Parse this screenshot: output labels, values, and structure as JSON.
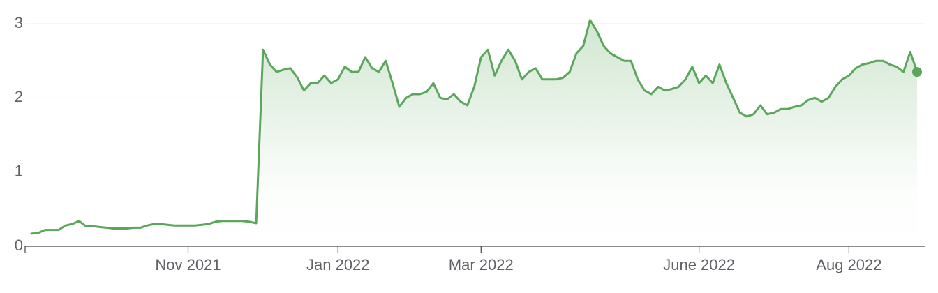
{
  "chart_data": {
    "type": "line",
    "categories": [
      null,
      null,
      null,
      null,
      null,
      null,
      null,
      null,
      null,
      null,
      null,
      null,
      null,
      null,
      null,
      null,
      null,
      null,
      null,
      null,
      null,
      null,
      null,
      "Nov 2021",
      null,
      null,
      null,
      null,
      null,
      null,
      null,
      null,
      null,
      null,
      null,
      null,
      null,
      null,
      null,
      null,
      null,
      null,
      null,
      null,
      null,
      "Jan 2022",
      null,
      null,
      null,
      null,
      null,
      null,
      null,
      null,
      null,
      null,
      null,
      null,
      null,
      null,
      null,
      null,
      null,
      null,
      null,
      null,
      "Mar 2022",
      null,
      null,
      null,
      null,
      null,
      null,
      null,
      null,
      null,
      null,
      null,
      null,
      null,
      null,
      null,
      null,
      null,
      null,
      null,
      null,
      null,
      null,
      null,
      null,
      null,
      null,
      null,
      null,
      null,
      null,
      null,
      "June 2022",
      null,
      null,
      null,
      null,
      null,
      null,
      null,
      null,
      null,
      null,
      null,
      null,
      null,
      null,
      null,
      null,
      null,
      null,
      null,
      null,
      null,
      "Aug 2022",
      null,
      null,
      null,
      null,
      null,
      null,
      null,
      null,
      null,
      null
    ],
    "values": [
      0.17,
      0.18,
      0.22,
      0.22,
      0.22,
      0.28,
      0.3,
      0.34,
      0.27,
      0.27,
      0.26,
      0.25,
      0.24,
      0.24,
      0.24,
      0.25,
      0.25,
      0.28,
      0.3,
      0.3,
      0.29,
      0.28,
      0.28,
      0.28,
      0.28,
      0.29,
      0.3,
      0.33,
      0.34,
      0.34,
      0.34,
      0.34,
      0.33,
      0.31,
      2.65,
      2.45,
      2.35,
      2.38,
      2.4,
      2.28,
      2.1,
      2.2,
      2.2,
      2.3,
      2.2,
      2.25,
      2.42,
      2.35,
      2.35,
      2.55,
      2.4,
      2.35,
      2.5,
      2.2,
      1.88,
      2.0,
      2.05,
      2.05,
      2.08,
      2.2,
      2.0,
      1.98,
      2.05,
      1.95,
      1.9,
      2.15,
      2.55,
      2.65,
      2.3,
      2.5,
      2.65,
      2.5,
      2.25,
      2.35,
      2.4,
      2.25,
      2.25,
      2.25,
      2.27,
      2.35,
      2.6,
      2.7,
      3.05,
      2.9,
      2.7,
      2.6,
      2.55,
      2.5,
      2.5,
      2.25,
      2.1,
      2.05,
      2.15,
      2.1,
      2.12,
      2.15,
      2.25,
      2.42,
      2.2,
      2.3,
      2.2,
      2.45,
      2.2,
      2.0,
      1.8,
      1.75,
      1.78,
      1.9,
      1.78,
      1.8,
      1.85,
      1.85,
      1.88,
      1.9,
      1.97,
      2.0,
      1.95,
      2.0,
      2.15,
      2.25,
      2.3,
      2.4,
      2.45,
      2.47,
      2.5,
      2.5,
      2.45,
      2.42,
      2.35,
      2.62,
      2.35
    ],
    "color": "#5aa65a",
    "ylim": [
      0,
      3.1
    ],
    "yticks": [
      0,
      1,
      2,
      3
    ],
    "grid": true
  }
}
